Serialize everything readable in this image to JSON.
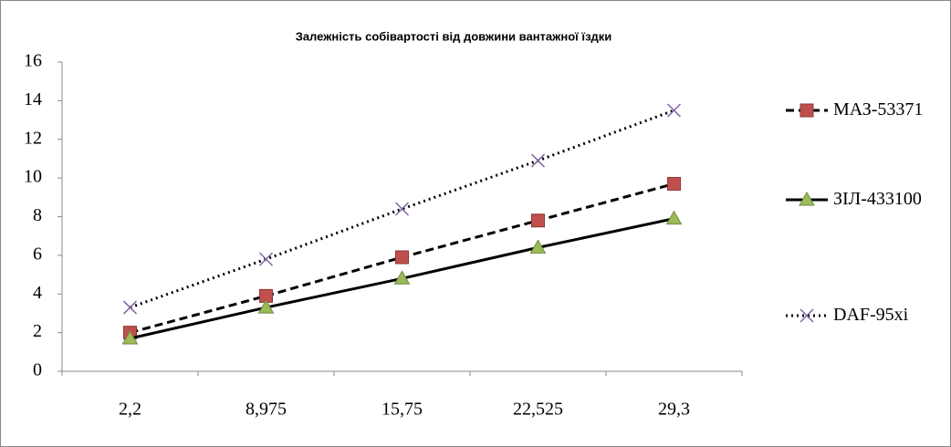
{
  "chart_data": {
    "type": "line",
    "title": "Залежність собівартості від довжини вантажної їздки",
    "categories": [
      "2,2",
      "8,975",
      "15,75",
      "22,525",
      "29,3"
    ],
    "series": [
      {
        "name": "МАЗ-53371",
        "color": "#c0504d",
        "values": [
          2.0,
          3.9,
          5.9,
          7.8,
          9.7
        ]
      },
      {
        "name": "ЗІЛ-433100",
        "color": "#9bbb59",
        "values": [
          1.7,
          3.3,
          4.8,
          6.4,
          7.9
        ]
      },
      {
        "name": "DAF-95xi",
        "color": "#8064a2",
        "values": [
          3.3,
          5.8,
          8.4,
          10.9,
          13.5
        ]
      }
    ],
    "ylim": [
      0,
      16
    ],
    "yticks": [
      0,
      2,
      4,
      6,
      8,
      10,
      12,
      14,
      16
    ]
  }
}
